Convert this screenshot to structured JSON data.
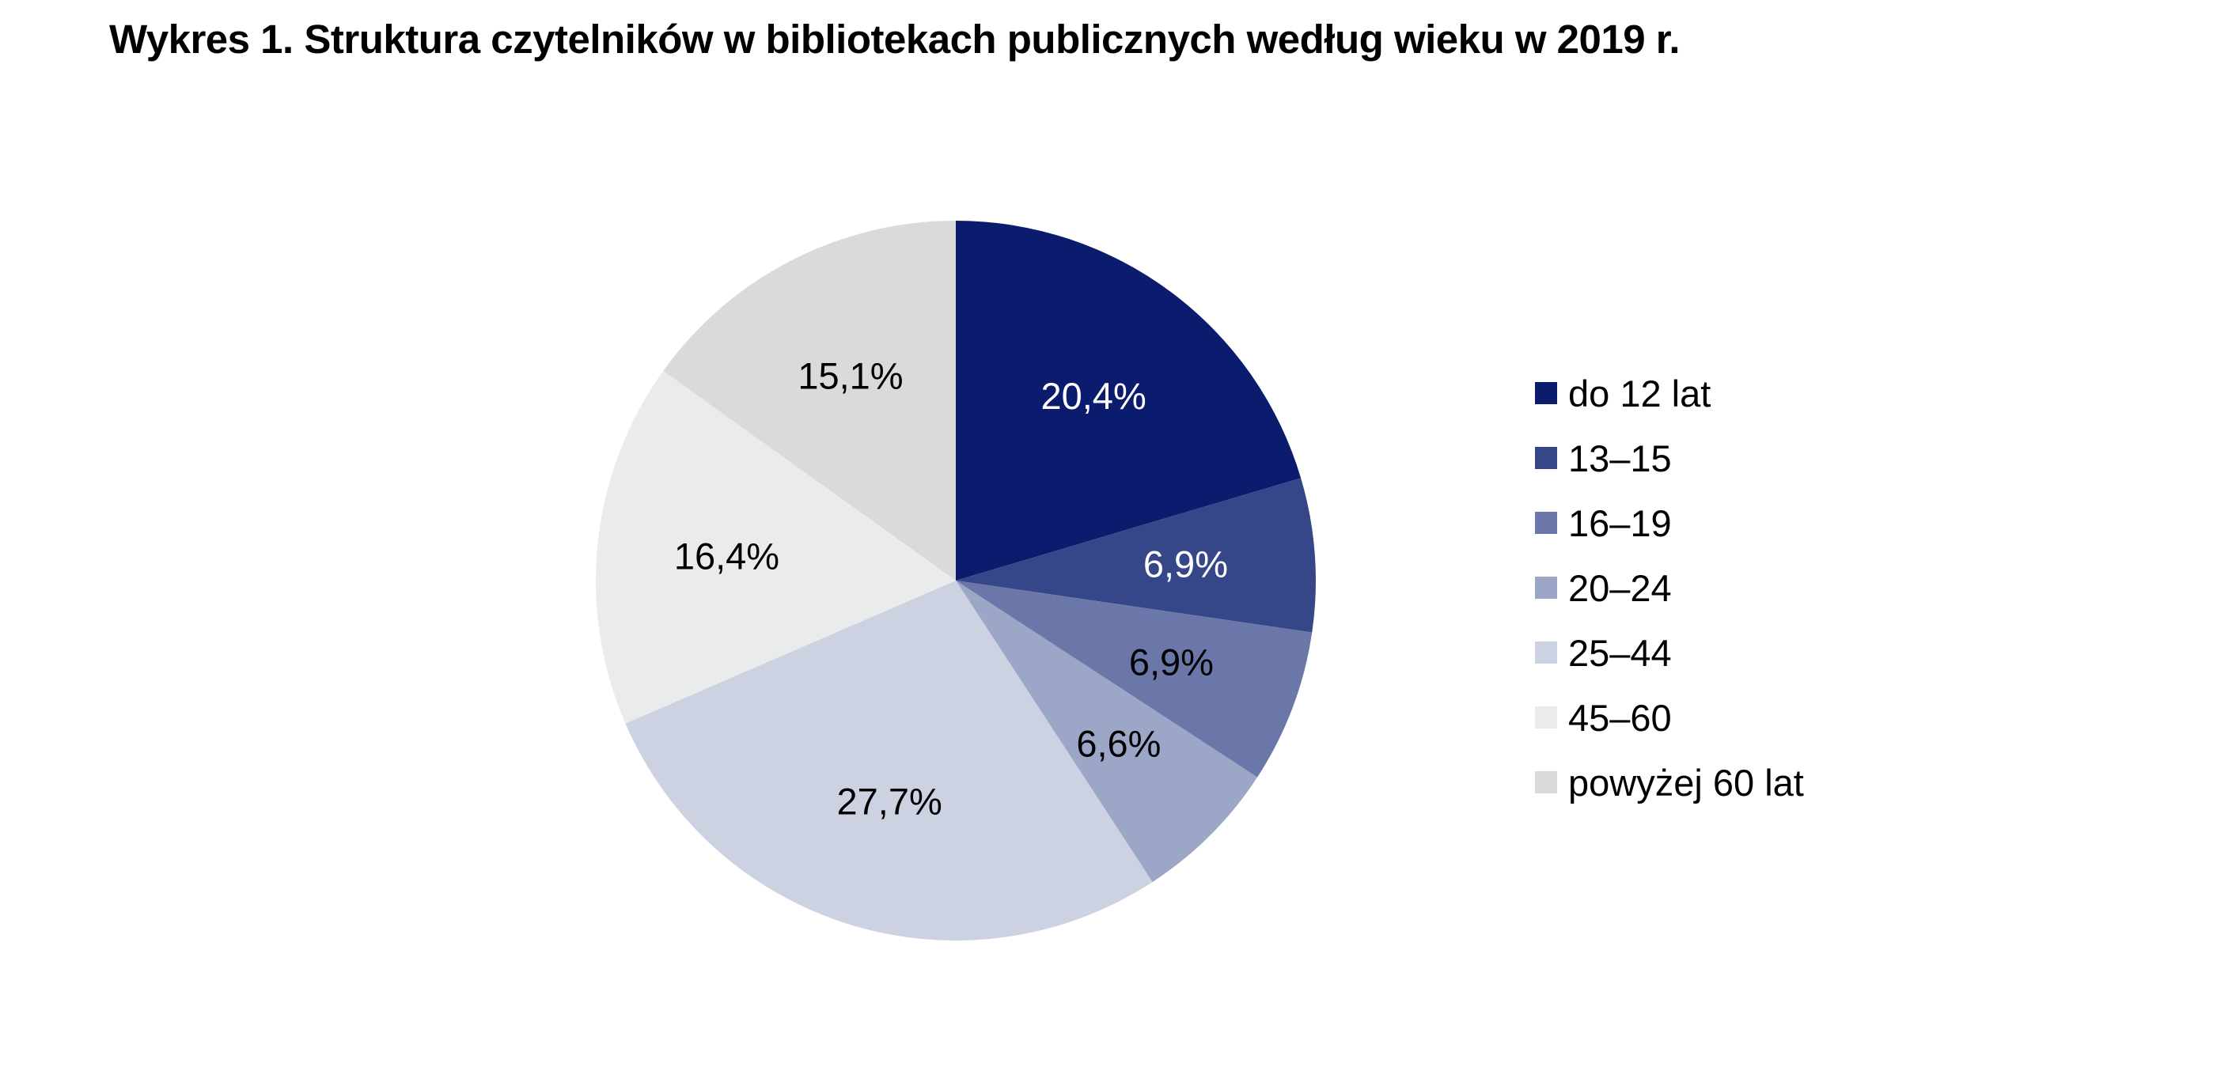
{
  "chart_data": {
    "type": "pie",
    "title": "Wykres 1. Struktura czytelników w bibliotekach publicznych według wieku w 2019 r.",
    "unit": "%",
    "start_angle_deg": 0,
    "direction": "clockwise",
    "legend_position": "right",
    "slices": [
      {
        "label": "do 12 lat",
        "value": 20.4,
        "display": "20,4%",
        "color": "#0b1c6e",
        "text_color": "#ffffff"
      },
      {
        "label": "13–15",
        "value": 6.9,
        "display": "6,9%",
        "color": "#354789",
        "text_color": "#ffffff"
      },
      {
        "label": "16–19",
        "value": 6.9,
        "display": "6,9%",
        "color": "#6a77a8",
        "text_color": "#000000"
      },
      {
        "label": "20–24",
        "value": 6.6,
        "display": "6,6%",
        "color": "#9ca6c7",
        "text_color": "#000000"
      },
      {
        "label": "25–44",
        "value": 27.7,
        "display": "27,7%",
        "color": "#cdd2e3",
        "text_color": "#000000"
      },
      {
        "label": "45–60",
        "value": 16.4,
        "display": "16,4%",
        "color": "#eaebeb",
        "text_color": "#000000"
      },
      {
        "label": "powyżej 60 lat",
        "value": 15.1,
        "display": "15,1%",
        "color": "#d9dadb",
        "text_color": "#000000"
      }
    ]
  }
}
